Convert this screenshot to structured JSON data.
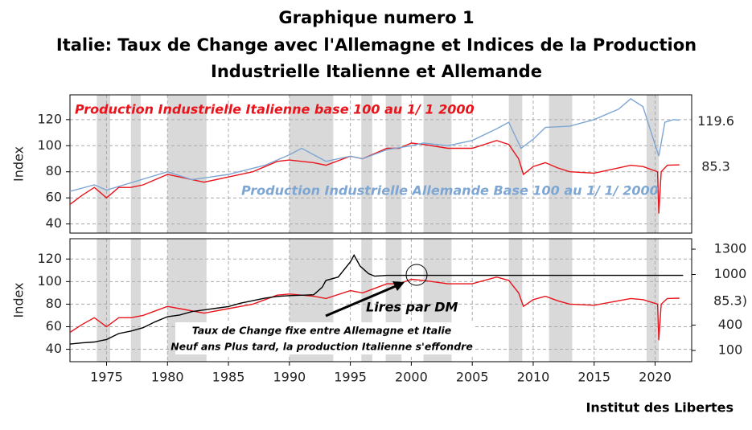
{
  "title_lines": [
    "Graphique numero 1",
    "Italie: Taux de Change avec l'Allemagne et Indices de la Production",
    "Industrielle Italienne et Allemande"
  ],
  "source": "Institut des Libertes",
  "chart_data": [
    {
      "type": "line",
      "ylabel": "Index",
      "xlim": [
        1972,
        2023
      ],
      "ylim": [
        33,
        139
      ],
      "yticks": [
        40,
        60,
        80,
        100,
        120
      ],
      "xticks": [
        1975,
        1980,
        1985,
        1990,
        1995,
        2000,
        2005,
        2010,
        2015,
        2020
      ],
      "grid": true,
      "shaded_periods": [
        [
          1974.2,
          1975.3
        ],
        [
          1977,
          1977.8
        ],
        [
          1980,
          1983.2
        ],
        [
          1990,
          1993.6
        ],
        [
          1995.9,
          1996.8
        ],
        [
          1997.9,
          1999.2
        ],
        [
          2001,
          2003.3
        ],
        [
          2008,
          2009.1
        ],
        [
          2011.3,
          2013.2
        ],
        [
          2019.3,
          2020.3
        ]
      ],
      "series": [
        {
          "name": "Production Industrielle Italienne base 100 au 1/ 1 2000",
          "color": "#e8141b",
          "x": [
            1972,
            1973,
            1974,
            1975,
            1976,
            1977,
            1978,
            1980,
            1981,
            1983,
            1985,
            1987,
            1989,
            1990,
            1992,
            1993,
            1995,
            1996,
            1997,
            1998,
            1999,
            2000,
            2001,
            2003,
            2005,
            2007,
            2008,
            2008.8,
            2009.2,
            2010,
            2011,
            2012,
            2013,
            2015,
            2017,
            2018,
            2019,
            2020.2,
            2020.3,
            2020.5,
            2021,
            2022
          ],
          "values": [
            55,
            62,
            68,
            60,
            68,
            68,
            70,
            78,
            76,
            72,
            76,
            80,
            88,
            89,
            87,
            85,
            92,
            90,
            94,
            98,
            98,
            102,
            101,
            98,
            98,
            104,
            101,
            90,
            78,
            84,
            87,
            83,
            80,
            79,
            83,
            85,
            84,
            80,
            48,
            80,
            85,
            85.3
          ]
        },
        {
          "name": "Production Industrielle Allemande Base 100 au 1/ 1/ 2000",
          "color": "#7ea6d3",
          "x": [
            1972,
            1974,
            1975,
            1980,
            1982,
            1985,
            1988,
            1990,
            1991,
            1993,
            1995,
            1996,
            1998,
            2000,
            2001,
            2003,
            2005,
            2007,
            2008,
            2009,
            2010,
            2011,
            2013,
            2015,
            2017,
            2018,
            2019,
            2020.3,
            2020.8,
            2021.5,
            2022
          ],
          "values": [
            65,
            70,
            66,
            80,
            74,
            78,
            85,
            93,
            98,
            88,
            92,
            90,
            97,
            100,
            102,
            100,
            104,
            113,
            118,
            98,
            105,
            114,
            115,
            120,
            128,
            136,
            130,
            92,
            118,
            120,
            119.6
          ]
        }
      ]
    },
    {
      "type": "line",
      "ylabel": "Index",
      "xlim": [
        1972,
        2023
      ],
      "ylim": [
        29,
        138
      ],
      "y2lim": [
        -33,
        1424
      ],
      "yticks": [
        40,
        60,
        80,
        100,
        120
      ],
      "y2ticks": [
        100,
        400,
        1000,
        1300
      ],
      "xticks": [
        1975,
        1980,
        1985,
        1990,
        1995,
        2000,
        2005,
        2010,
        2015,
        2020
      ],
      "grid": true,
      "shaded_periods": [
        [
          1974.2,
          1975.3
        ],
        [
          1977,
          1977.8
        ],
        [
          1980,
          1983.2
        ],
        [
          1990,
          1993.6
        ],
        [
          1995.9,
          1996.8
        ],
        [
          1997.9,
          1999.2
        ],
        [
          2001,
          2003.3
        ],
        [
          2008,
          2009.1
        ],
        [
          2011.3,
          2013.2
        ],
        [
          2019.3,
          2020.3
        ]
      ],
      "annotations": [
        "Taux de Change fixe entre Allemagne et Italie",
        "Neuf ans Plus tard, la production Italienne s'effondre"
      ],
      "series": [
        {
          "color": "#e8141b",
          "end_label": "85.3)",
          "x": [
            1972,
            1973,
            1974,
            1975,
            1976,
            1977,
            1978,
            1980,
            1981,
            1983,
            1985,
            1987,
            1989,
            1990,
            1992,
            1993,
            1995,
            1996,
            1997,
            1998,
            1999,
            2000,
            2001,
            2003,
            2005,
            2007,
            2008,
            2008.8,
            2009.2,
            2010,
            2011,
            2012,
            2013,
            2015,
            2017,
            2018,
            2019,
            2020.2,
            2020.3,
            2020.5,
            2021,
            2022
          ],
          "values": [
            55,
            62,
            68,
            60,
            68,
            68,
            70,
            78,
            76,
            72,
            76,
            80,
            88,
            89,
            87,
            85,
            92,
            90,
            94,
            98,
            98,
            102,
            101,
            98,
            98,
            104,
            101,
            90,
            78,
            84,
            87,
            83,
            80,
            79,
            83,
            85,
            84,
            80,
            48,
            80,
            85,
            85.3
          ]
        },
        {
          "name": "Lires par DM",
          "color": "#000000",
          "axis": "y2",
          "x": [
            1972,
            1973,
            1974,
            1975,
            1976,
            1977,
            1978,
            1979,
            1980,
            1981,
            1982,
            1983,
            1984,
            1985,
            1986,
            1987,
            1988,
            1989,
            1990,
            1991,
            1992,
            1992.7,
            1993,
            1994,
            1995,
            1995.3,
            1995.8,
            1996.5,
            1997,
            1998,
            1999,
            2022.3
          ],
          "values": [
            176,
            190,
            200,
            230,
            300,
            330,
            370,
            440,
            500,
            520,
            560,
            580,
            600,
            620,
            660,
            690,
            720,
            740,
            750,
            755,
            760,
            850,
            930,
            970,
            1150,
            1230,
            1100,
            1010,
            980,
            990,
            990,
            990
          ]
        }
      ]
    }
  ]
}
